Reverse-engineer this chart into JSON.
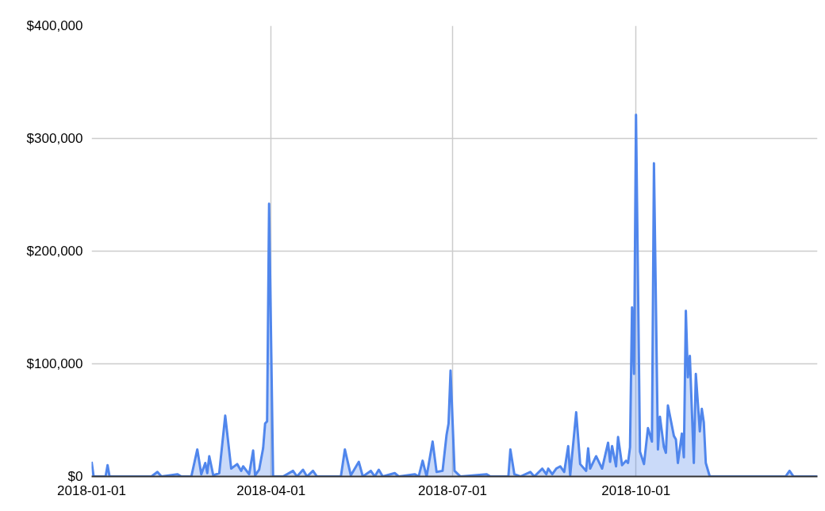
{
  "chart_data": {
    "type": "area",
    "x": [
      "2018-01-01",
      "2018-01-02",
      "2018-01-08",
      "2018-01-09",
      "2018-01-10",
      "2018-01-31",
      "2018-02-03",
      "2018-02-05",
      "2018-02-13",
      "2018-02-15",
      "2018-02-20",
      "2018-02-23",
      "2018-02-25",
      "2018-02-27",
      "2018-02-28",
      "2018-03-01",
      "2018-03-03",
      "2018-03-06",
      "2018-03-09",
      "2018-03-12",
      "2018-03-15",
      "2018-03-17",
      "2018-03-18",
      "2018-03-21",
      "2018-03-23",
      "2018-03-24",
      "2018-03-26",
      "2018-03-28",
      "2018-03-29",
      "2018-03-30",
      "2018-03-31",
      "2018-04-02",
      "2018-04-07",
      "2018-04-12",
      "2018-04-14",
      "2018-04-17",
      "2018-04-19",
      "2018-04-22",
      "2018-04-24",
      "2018-05-06",
      "2018-05-08",
      "2018-05-11",
      "2018-05-15",
      "2018-05-17",
      "2018-05-21",
      "2018-05-23",
      "2018-05-25",
      "2018-05-27",
      "2018-06-02",
      "2018-06-04",
      "2018-06-12",
      "2018-06-14",
      "2018-06-16",
      "2018-06-18",
      "2018-06-21",
      "2018-06-23",
      "2018-06-26",
      "2018-06-28",
      "2018-06-29",
      "2018-06-30",
      "2018-07-02",
      "2018-07-05",
      "2018-07-18",
      "2018-07-20",
      "2018-07-29",
      "2018-07-30",
      "2018-08-01",
      "2018-08-04",
      "2018-08-09",
      "2018-08-11",
      "2018-08-15",
      "2018-08-17",
      "2018-08-18",
      "2018-08-20",
      "2018-08-22",
      "2018-08-24",
      "2018-08-26",
      "2018-08-28",
      "2018-08-29",
      "2018-09-01",
      "2018-09-03",
      "2018-09-06",
      "2018-09-07",
      "2018-09-08",
      "2018-09-11",
      "2018-09-14",
      "2018-09-17",
      "2018-09-18",
      "2018-09-19",
      "2018-09-21",
      "2018-09-22",
      "2018-09-24",
      "2018-09-26",
      "2018-09-27",
      "2018-09-28",
      "2018-09-29",
      "2018-09-30",
      "2018-10-01",
      "2018-10-03",
      "2018-10-05",
      "2018-10-07",
      "2018-10-09",
      "2018-10-10",
      "2018-10-12",
      "2018-10-13",
      "2018-10-15",
      "2018-10-16",
      "2018-10-17",
      "2018-10-20",
      "2018-10-21",
      "2018-10-22",
      "2018-10-24",
      "2018-10-25",
      "2018-10-26",
      "2018-10-27",
      "2018-10-28",
      "2018-10-30",
      "2018-10-31",
      "2018-11-02",
      "2018-11-03",
      "2018-11-04",
      "2018-11-05",
      "2018-11-07",
      "2018-12-15",
      "2018-12-17",
      "2018-12-19",
      "2018-12-31"
    ],
    "series": [
      {
        "color": "#5086ec",
        "values": [
          13000,
          0,
          0,
          10000,
          0,
          0,
          4000,
          0,
          2000,
          0,
          0,
          24000,
          2000,
          12000,
          3000,
          18000,
          1000,
          3000,
          54000,
          7000,
          11000,
          5000,
          9000,
          2000,
          23000,
          1000,
          6000,
          25000,
          47000,
          49000,
          242000,
          0,
          0,
          5000,
          0,
          6000,
          0,
          5000,
          0,
          0,
          24000,
          1000,
          13000,
          0,
          5000,
          0,
          6000,
          0,
          3000,
          0,
          2000,
          0,
          14000,
          0,
          31000,
          4000,
          5000,
          37000,
          47000,
          94000,
          5000,
          0,
          2000,
          0,
          0,
          24000,
          2000,
          0,
          4000,
          0,
          7000,
          2000,
          7000,
          2000,
          7000,
          9000,
          4000,
          27000,
          1000,
          57000,
          11000,
          5000,
          25000,
          7000,
          18000,
          7000,
          30000,
          13000,
          27000,
          9000,
          35000,
          10000,
          14000,
          12000,
          26000,
          150000,
          91000,
          321000,
          22000,
          11000,
          43000,
          31000,
          278000,
          24000,
          53000,
          26000,
          21000,
          63000,
          36000,
          33000,
          12000,
          38000,
          17000,
          147000,
          88000,
          107000,
          12000,
          91000,
          40000,
          60000,
          48000,
          12000,
          0,
          0,
          5000,
          0,
          0
        ]
      }
    ],
    "xlim": [
      "2018-01-01",
      "2018-12-31"
    ],
    "xticks": [
      {
        "value": "2018-01-01",
        "label": "2018-01-01"
      },
      {
        "value": "2018-04-01",
        "label": "2018-04-01"
      },
      {
        "value": "2018-07-01",
        "label": "2018-07-01"
      },
      {
        "value": "2018-10-01",
        "label": "2018-10-01"
      }
    ],
    "ylim": [
      0,
      400000
    ],
    "yticks": [
      {
        "value": 0,
        "label": "$0"
      },
      {
        "value": 100000,
        "label": "$100,000"
      },
      {
        "value": 200000,
        "label": "$200,000"
      },
      {
        "value": 300000,
        "label": "$300,000"
      },
      {
        "value": 400000,
        "label": "$400,000"
      }
    ],
    "grid": true,
    "marker": "none",
    "line_style": "solid"
  }
}
